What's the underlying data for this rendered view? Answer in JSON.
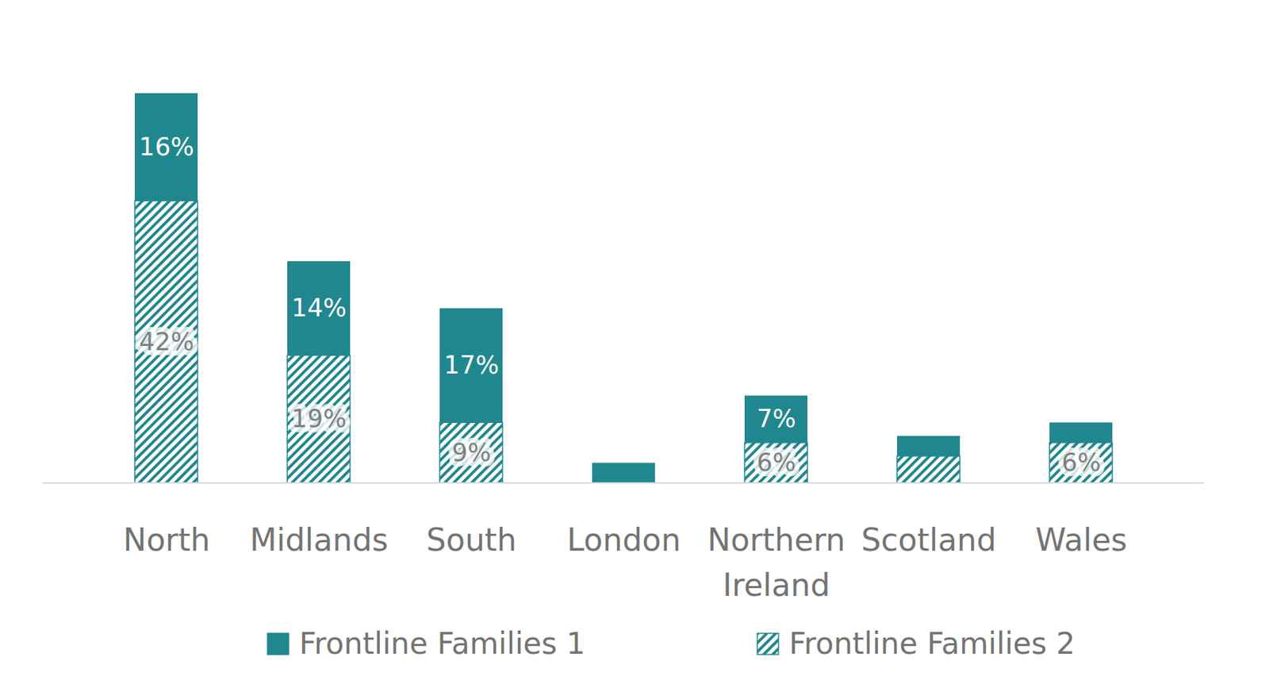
{
  "chart_data": {
    "type": "bar",
    "stacked": true,
    "data_labels": true,
    "tick_labels": "x",
    "legend": "bottom",
    "categories": [
      "North",
      "Midlands",
      "South",
      "London",
      "Northern Ireland",
      "Scotland",
      "Wales"
    ],
    "series": [
      {
        "name": "Frontline Families 1",
        "color": "#21878f",
        "values": [
          16,
          14,
          17,
          3,
          7,
          3,
          3
        ],
        "value_labels": [
          "16%",
          "14%",
          "17%",
          null,
          "7%",
          null,
          null
        ]
      },
      {
        "name": "Frontline Families 2",
        "color": "#21878f",
        "values": [
          42,
          19,
          9,
          0,
          6,
          4,
          6
        ],
        "value_labels": [
          "42%",
          "19%",
          "9%",
          null,
          "6%",
          null,
          "6%"
        ]
      }
    ]
  }
}
